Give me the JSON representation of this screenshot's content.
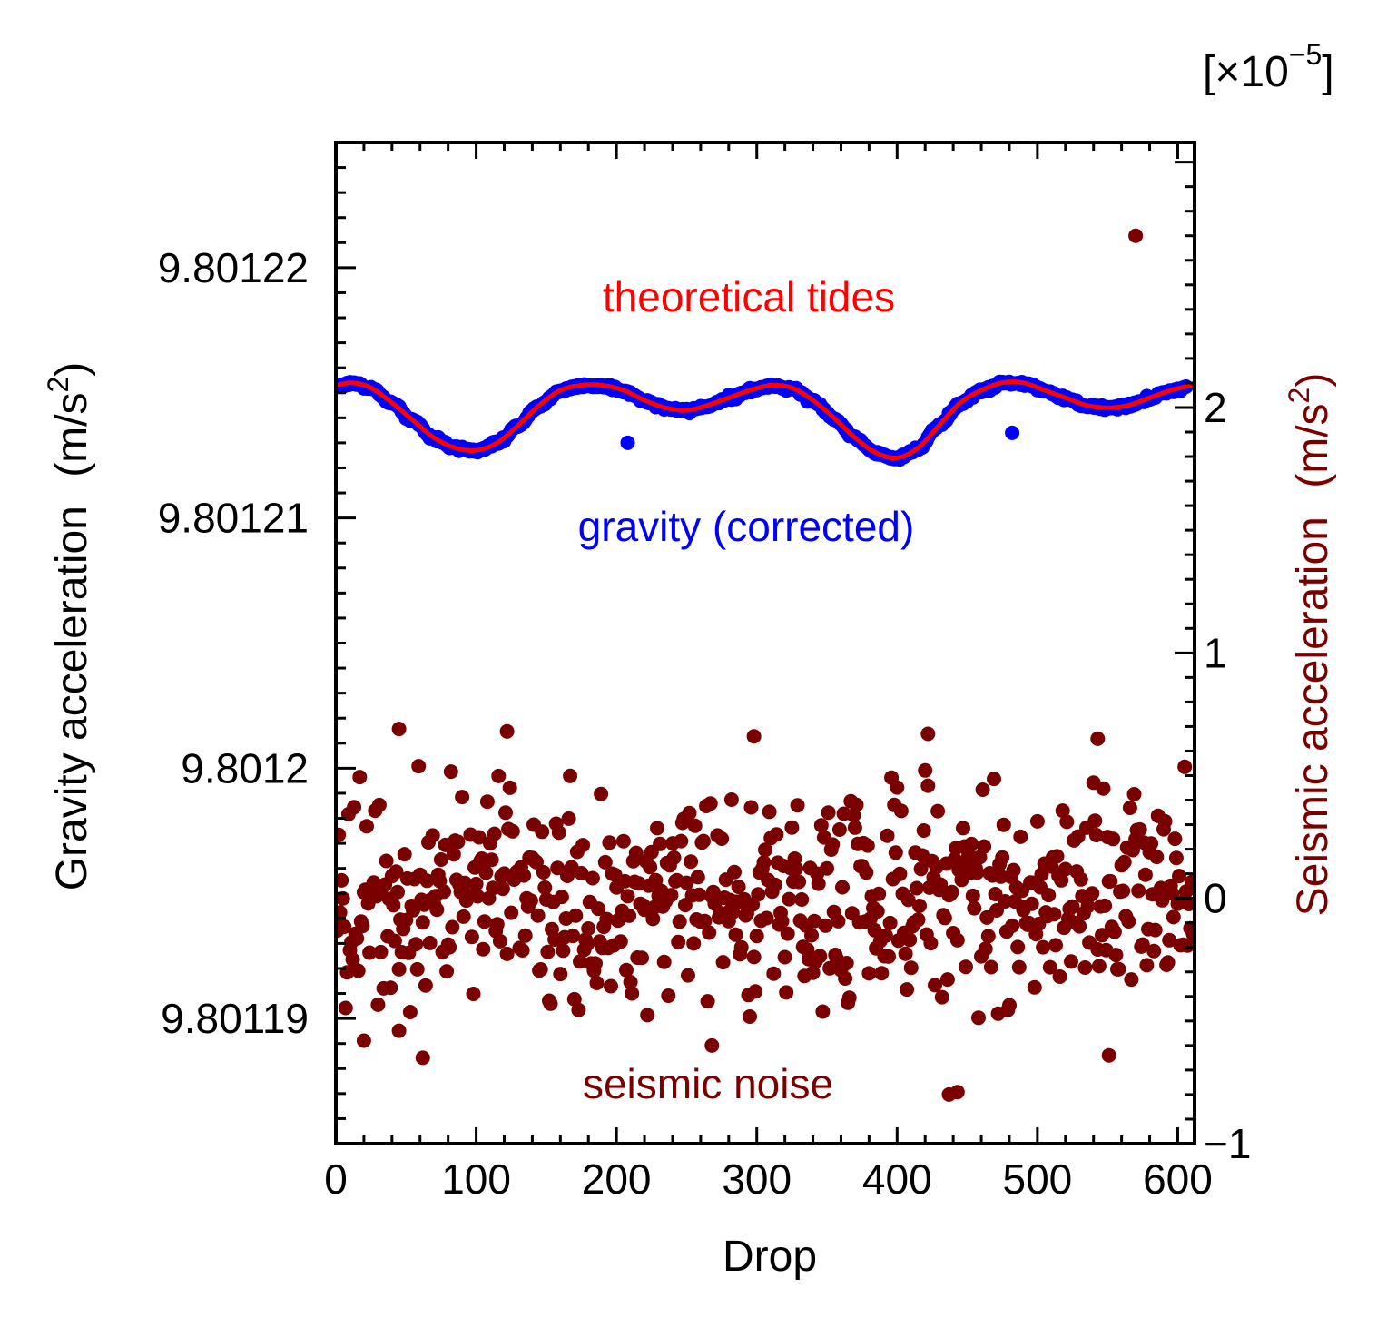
{
  "chart_data": {
    "type": "scatter",
    "title": "",
    "xlabel": "Drop",
    "ylabel_left": "Gravity acceleration",
    "ylabel_left_unit": "(m/s",
    "ylabel_right": "Seismic acceleration",
    "ylabel_right_unit": "(m/s",
    "unit_exponent": "2",
    "right_axis_multiplier": "[×10",
    "right_axis_multiplier_exponent": "−5",
    "right_axis_multiplier_close": "]",
    "xlim": [
      0,
      612
    ],
    "ylim_left": [
      9.801185,
      9.801225
    ],
    "ylim_right": [
      -1,
      3.08
    ],
    "grid": false,
    "legend": "none",
    "x_ticks": [
      "0",
      "100",
      "200",
      "300",
      "400",
      "500",
      "600"
    ],
    "y_left_ticks": [
      {
        "value": 9.80122,
        "label": "9.80122"
      },
      {
        "value": 9.80121,
        "label": "9.80121"
      },
      {
        "value": 9.8012,
        "label": "9.8012"
      },
      {
        "value": 9.80119,
        "label": "9.80119"
      }
    ],
    "y_right_ticks": [
      {
        "value": 2,
        "label": "2"
      },
      {
        "value": 1,
        "label": "1"
      },
      {
        "value": 0,
        "label": "0"
      },
      {
        "value": -1,
        "label": "−1"
      }
    ],
    "annotations": {
      "tides": "theoretical tides",
      "gravity": "gravity (corrected)",
      "seismic": "seismic noise"
    },
    "colors": {
      "tides": "#ff0000",
      "gravity": "#0000ff",
      "seismic": "#7a0000",
      "axes": "#000000"
    },
    "series": [
      {
        "name": "theoretical tides",
        "axis": "left",
        "style": "line",
        "x": [
          0,
          12,
          25,
          40,
          55,
          70,
          85,
          100,
          115,
          130,
          145,
          160,
          175,
          190,
          205,
          220,
          235,
          250,
          265,
          280,
          295,
          310,
          325,
          340,
          355,
          370,
          385,
          400,
          415,
          430,
          445,
          460,
          475,
          490,
          505,
          520,
          535,
          550,
          565,
          580,
          595,
          610
        ],
        "values": [
          9.8012153,
          9.8012154,
          9.8012152,
          9.8012146,
          9.8012139,
          9.8012132,
          9.8012128,
          9.8012127,
          9.801213,
          9.8012137,
          9.8012145,
          9.8012151,
          9.8012153,
          9.8012153,
          9.8012151,
          9.8012147,
          9.8012144,
          9.8012143,
          9.8012145,
          9.8012148,
          9.8012151,
          9.8012153,
          9.8012152,
          9.8012147,
          9.801214,
          9.8012132,
          9.8012126,
          9.8012124,
          9.8012128,
          9.8012137,
          9.8012146,
          9.8012151,
          9.8012154,
          9.8012154,
          9.8012151,
          9.8012148,
          9.8012145,
          9.8012144,
          9.8012145,
          9.8012148,
          9.8012151,
          9.8012153
        ]
      },
      {
        "name": "gravity (corrected)",
        "axis": "left",
        "style": "points",
        "scatter_sd": 4e-08,
        "outliers": [
          {
            "x": 208,
            "y": 9.801213
          },
          {
            "x": 482,
            "y": 9.8012134
          }
        ]
      },
      {
        "name": "seismic noise",
        "axis": "right",
        "style": "points",
        "count": 612,
        "mean": 0,
        "sd": 0.22,
        "highlights": [
          {
            "x": 570,
            "y": 2.7
          },
          {
            "x": 437,
            "y": -0.8
          },
          {
            "x": 443,
            "y": -0.79
          },
          {
            "x": 45,
            "y": 0.69
          },
          {
            "x": 122,
            "y": 0.68
          },
          {
            "x": 298,
            "y": 0.66
          },
          {
            "x": 422,
            "y": 0.67
          },
          {
            "x": 543,
            "y": 0.65
          },
          {
            "x": 62,
            "y": -0.65
          },
          {
            "x": 268,
            "y": -0.6
          },
          {
            "x": 551,
            "y": -0.64
          },
          {
            "x": 20,
            "y": -0.58
          },
          {
            "x": 45,
            "y": -0.54
          }
        ]
      }
    ]
  }
}
